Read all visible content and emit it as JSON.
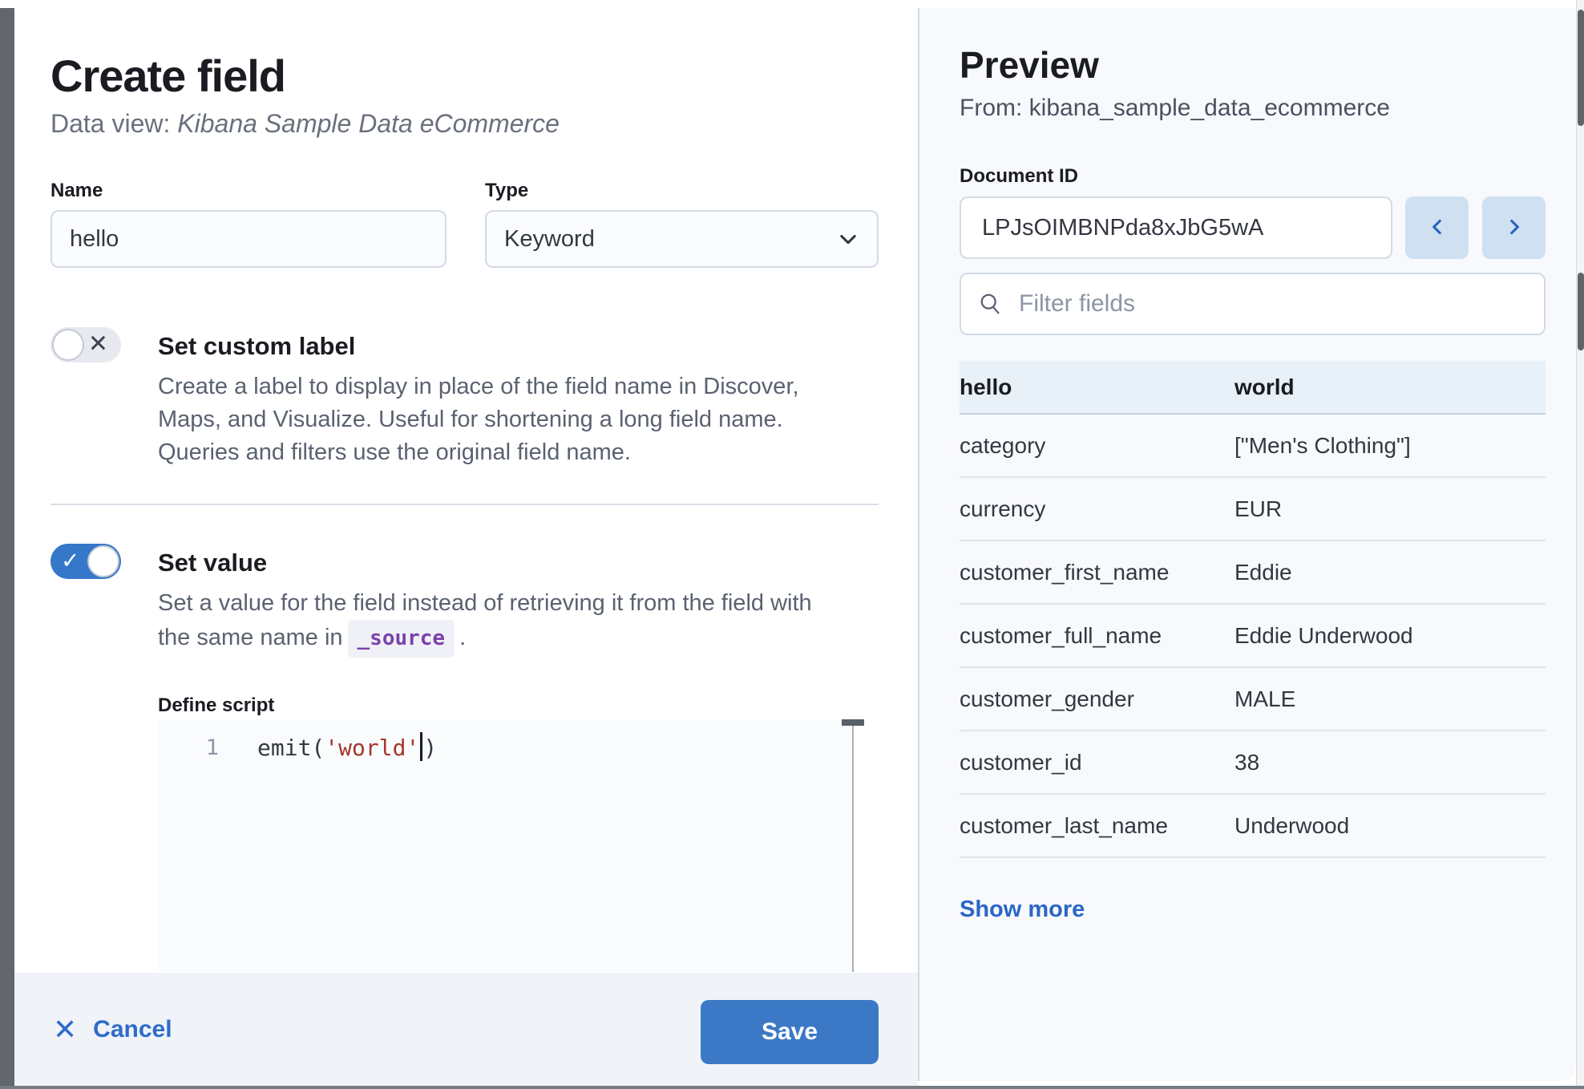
{
  "panel_left": {
    "title": "Create field",
    "subtitle_prefix": "Data view: ",
    "subtitle_italic": "Kibana Sample Data eCommerce",
    "name_label": "Name",
    "name_value": "hello",
    "type_label": "Type",
    "type_value": "Keyword",
    "custom_label": {
      "title": "Set custom label",
      "enabled": "off",
      "desc_lines": [
        "Create a label to display in place of the field name in Discover,",
        "Maps, and Visualize. Useful for shortening a long field name.",
        "Queries and filters use the original field name."
      ]
    },
    "set_value": {
      "title": "Set value",
      "enabled": "on",
      "desc_line1": "Set a value for the field instead of retrieving it from the field with",
      "desc_line2_prefix": "the same name in",
      "code_token": "_source",
      "desc_suffix": "."
    },
    "script": {
      "label": "Define script",
      "line_number": "1",
      "code_fn": "emit(",
      "code_string": "'world'",
      "code_close": ")"
    },
    "footer": {
      "cancel_label": "Cancel",
      "save_label": "Save"
    }
  },
  "panel_right": {
    "title": "Preview",
    "from_line": "From: kibana_sample_data_ecommerce",
    "document_id_label": "Document ID",
    "document_id_value": "LPJsOIMBNPda8xJbG5wA",
    "filter_placeholder": "Filter fields",
    "table": {
      "header_key": "hello",
      "header_value": "world",
      "rows": [
        {
          "key": "category",
          "value": "[\"Men's Clothing\"]"
        },
        {
          "key": "currency",
          "value": "EUR"
        },
        {
          "key": "customer_first_name",
          "value": "Eddie"
        },
        {
          "key": "customer_full_name",
          "value": "Eddie Underwood"
        },
        {
          "key": "customer_gender",
          "value": "MALE"
        },
        {
          "key": "customer_id",
          "value": "38"
        },
        {
          "key": "customer_last_name",
          "value": "Underwood"
        }
      ]
    },
    "show_more_label": "Show more"
  },
  "colors": {
    "accent_blue": "#3b79c7",
    "link_blue": "#2e6bc9",
    "toggle_on_blue": "#3577c9",
    "nav_button_bg": "#cfe0f1",
    "highlight_row_bg": "#e8f0f8",
    "right_panel_bg": "#f7f9fc",
    "footer_bg": "#f0f3f8",
    "string_red": "#a4362b",
    "badge_purple": "#7b42ab",
    "border_gray": "#d3dae6",
    "dim_strip": "#62676e"
  },
  "icons": {
    "toggle_off_glyph": "✕",
    "toggle_on_glyph": "✓",
    "cancel_x_glyph": "✕"
  }
}
